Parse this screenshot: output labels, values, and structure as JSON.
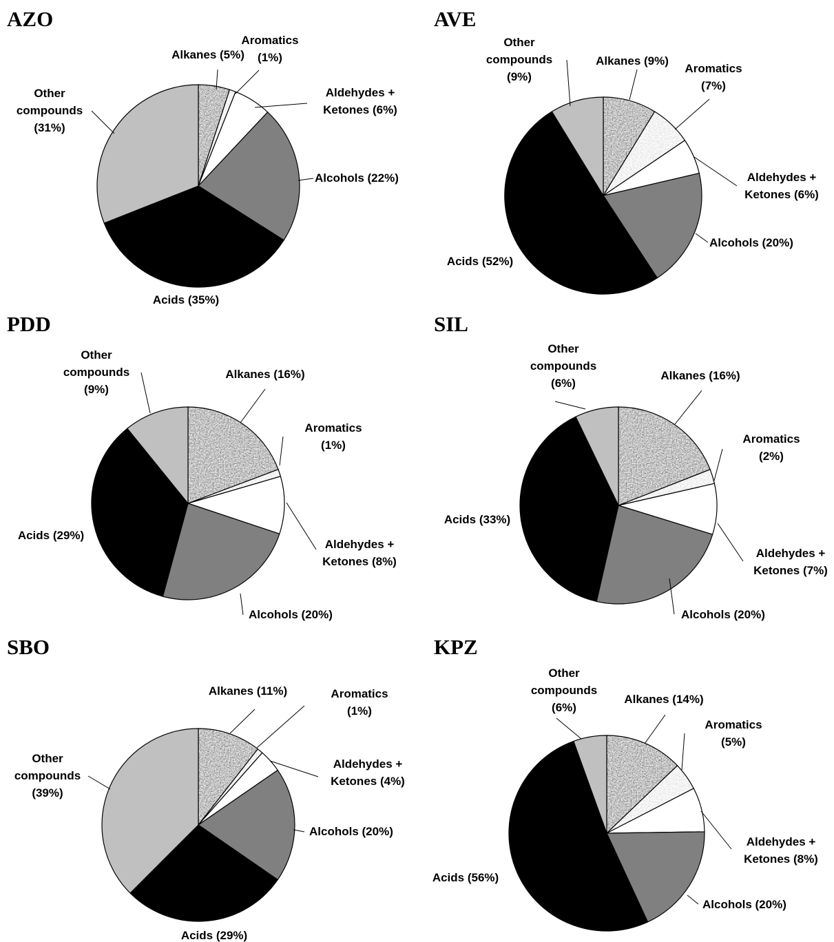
{
  "chart_data": [
    {
      "type": "pie",
      "title": "AZO",
      "slices": [
        {
          "label": "Alkanes",
          "value": 5,
          "text": [
            "Alkanes (5%)"
          ],
          "fill": "pattern-alkanes"
        },
        {
          "label": "Aromatics",
          "value": 1,
          "text": [
            "Aromatics",
            "(1%)"
          ],
          "fill": "pattern-aromatics"
        },
        {
          "label": "Aldehydes + Ketones",
          "value": 6,
          "text": [
            "Aldehydes +",
            "Ketones (6%)"
          ],
          "fill": "#ffffff"
        },
        {
          "label": "Alcohols",
          "value": 22,
          "text": [
            "Alcohols (22%)"
          ],
          "fill": "#808080"
        },
        {
          "label": "Acids",
          "value": 35,
          "text": [
            "Acids (35%)"
          ],
          "fill": "#000000"
        },
        {
          "label": "Other compounds",
          "value": 31,
          "text": [
            "Other",
            "compounds",
            "(31%)"
          ],
          "fill": "#c0c0c0"
        }
      ]
    },
    {
      "type": "pie",
      "title": "AVE",
      "slices": [
        {
          "label": "Alkanes",
          "value": 9,
          "text": [
            "Alkanes (9%)"
          ],
          "fill": "pattern-alkanes"
        },
        {
          "label": "Aromatics",
          "value": 7,
          "text": [
            "Aromatics",
            "(7%)"
          ],
          "fill": "pattern-aromatics"
        },
        {
          "label": "Aldehydes + Ketones",
          "value": 6,
          "text": [
            "Aldehydes +",
            "Ketones (6%)"
          ],
          "fill": "#ffffff"
        },
        {
          "label": "Alcohols",
          "value": 20,
          "text": [
            "Alcohols (20%)"
          ],
          "fill": "#808080"
        },
        {
          "label": "Acids",
          "value": 52,
          "text": [
            "Acids (52%)"
          ],
          "fill": "#000000"
        },
        {
          "label": "Other compounds",
          "value": 9,
          "text": [
            "Other",
            "compounds",
            "(9%)"
          ],
          "fill": "#c0c0c0"
        }
      ]
    },
    {
      "type": "pie",
      "title": "PDD",
      "slices": [
        {
          "label": "Alkanes",
          "value": 16,
          "text": [
            "Alkanes (16%)"
          ],
          "fill": "pattern-alkanes"
        },
        {
          "label": "Aromatics",
          "value": 1,
          "text": [
            "Aromatics",
            "(1%)"
          ],
          "fill": "pattern-aromatics"
        },
        {
          "label": "Aldehydes + Ketones",
          "value": 8,
          "text": [
            "Aldehydes +",
            "Ketones (8%)"
          ],
          "fill": "#ffffff"
        },
        {
          "label": "Alcohols",
          "value": 20,
          "text": [
            "Alcohols (20%)"
          ],
          "fill": "#808080"
        },
        {
          "label": "Acids",
          "value": 29,
          "text": [
            "Acids (29%)"
          ],
          "fill": "#000000"
        },
        {
          "label": "Other compounds",
          "value": 9,
          "text": [
            "Other",
            "compounds",
            "(9%)"
          ],
          "fill": "#c0c0c0"
        }
      ]
    },
    {
      "type": "pie",
      "title": "SIL",
      "slices": [
        {
          "label": "Alkanes",
          "value": 16,
          "text": [
            "Alkanes (16%)"
          ],
          "fill": "pattern-alkanes"
        },
        {
          "label": "Aromatics",
          "value": 2,
          "text": [
            "Aromatics",
            "(2%)"
          ],
          "fill": "pattern-aromatics"
        },
        {
          "label": "Aldehydes + Ketones",
          "value": 7,
          "text": [
            "Aldehydes +",
            "Ketones (7%)"
          ],
          "fill": "#ffffff"
        },
        {
          "label": "Alcohols",
          "value": 20,
          "text": [
            "Alcohols (20%)"
          ],
          "fill": "#808080"
        },
        {
          "label": "Acids",
          "value": 33,
          "text": [
            "Acids (33%)"
          ],
          "fill": "#000000"
        },
        {
          "label": "Other compounds",
          "value": 6,
          "text": [
            "Other",
            "compounds",
            "(6%)"
          ],
          "fill": "#c0c0c0"
        }
      ]
    },
    {
      "type": "pie",
      "title": "SBO",
      "slices": [
        {
          "label": "Alkanes",
          "value": 11,
          "text": [
            "Alkanes (11%)"
          ],
          "fill": "pattern-alkanes"
        },
        {
          "label": "Aromatics",
          "value": 1,
          "text": [
            "Aromatics",
            "(1%)"
          ],
          "fill": "pattern-aromatics"
        },
        {
          "label": "Aldehydes + Ketones",
          "value": 4,
          "text": [
            "Aldehydes +",
            "Ketones (4%)"
          ],
          "fill": "#ffffff"
        },
        {
          "label": "Alcohols",
          "value": 20,
          "text": [
            "Alcohols (20%)"
          ],
          "fill": "#808080"
        },
        {
          "label": "Acids",
          "value": 29,
          "text": [
            "Acids (29%)"
          ],
          "fill": "#000000"
        },
        {
          "label": "Other compounds",
          "value": 39,
          "text": [
            "Other",
            "compounds",
            "(39%)"
          ],
          "fill": "#c0c0c0"
        }
      ]
    },
    {
      "type": "pie",
      "title": "KPZ",
      "slices": [
        {
          "label": "Alkanes",
          "value": 14,
          "text": [
            "Alkanes (14%)"
          ],
          "fill": "pattern-alkanes"
        },
        {
          "label": "Aromatics",
          "value": 5,
          "text": [
            "Aromatics",
            "(5%)"
          ],
          "fill": "pattern-aromatics"
        },
        {
          "label": "Aldehydes + Ketones",
          "value": 8,
          "text": [
            "Aldehydes +",
            "Ketones (8%)"
          ],
          "fill": "#ffffff"
        },
        {
          "label": "Alcohols",
          "value": 20,
          "text": [
            "Alcohols (20%)"
          ],
          "fill": "#808080"
        },
        {
          "label": "Acids",
          "value": 56,
          "text": [
            "Acids (56%)"
          ],
          "fill": "#000000"
        },
        {
          "label": "Other compounds",
          "value": 6,
          "text": [
            "Other",
            "compounds",
            "(6%)"
          ],
          "fill": "#c0c0c0"
        }
      ]
    }
  ]
}
